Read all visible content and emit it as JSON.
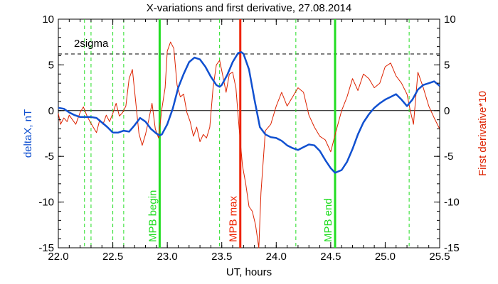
{
  "chart_data": {
    "type": "line",
    "title": "X-variations and first derivative, 27.08.2014",
    "xlabel": "UT, hours",
    "ylabel_left": "deltaX, nT",
    "ylabel_right": "First derivative*10",
    "xlim": [
      22.0,
      25.5
    ],
    "ylim": [
      -15,
      10
    ],
    "grid": false,
    "x_ticks": [
      22.0,
      22.5,
      23.0,
      23.5,
      24.0,
      24.5,
      25.0,
      25.5
    ],
    "x_tick_labels": [
      "22.0",
      "22.5",
      "23.0",
      "23.5",
      "24.0",
      "24.5",
      "25.0",
      "25.5"
    ],
    "y_ticks": [
      10,
      5,
      0,
      -5,
      -10,
      -15
    ],
    "y_tick_labels": [
      "10",
      "5",
      "0",
      "-5",
      "-10",
      "-15"
    ],
    "zero_line": 0,
    "sigma_level": 6.2,
    "sigma_label": "2sigma",
    "dashed_verticals": [
      22.24,
      22.3,
      22.5,
      22.6,
      23.48,
      24.18,
      25.22
    ],
    "markers": [
      {
        "label": "MPB begin",
        "x": 22.93,
        "color": "#22dd22"
      },
      {
        "label": "MPB max",
        "x": 23.67,
        "color": "#ee2200"
      },
      {
        "label": "MPB end",
        "x": 24.54,
        "color": "#22dd22"
      }
    ],
    "series": [
      {
        "name": "deltaX",
        "color": "#1050d0",
        "x": [
          22.0,
          22.05,
          22.1,
          22.15,
          22.2,
          22.25,
          22.3,
          22.35,
          22.4,
          22.45,
          22.5,
          22.55,
          22.6,
          22.65,
          22.7,
          22.75,
          22.8,
          22.85,
          22.9,
          22.93,
          22.95,
          23.0,
          23.05,
          23.1,
          23.15,
          23.2,
          23.25,
          23.3,
          23.35,
          23.4,
          23.45,
          23.48,
          23.5,
          23.55,
          23.6,
          23.65,
          23.68,
          23.7,
          23.75,
          23.8,
          23.85,
          23.9,
          23.95,
          24.0,
          24.05,
          24.1,
          24.15,
          24.2,
          24.25,
          24.3,
          24.35,
          24.4,
          24.45,
          24.5,
          24.54,
          24.6,
          24.65,
          24.7,
          24.75,
          24.8,
          24.85,
          24.9,
          24.95,
          25.0,
          25.05,
          25.1,
          25.15,
          25.2,
          25.25,
          25.3,
          25.35,
          25.4,
          25.45,
          25.5
        ],
        "values": [
          0.3,
          0.2,
          -0.2,
          -0.5,
          -0.7,
          -0.7,
          -0.7,
          -0.8,
          -1.3,
          -1.8,
          -2.4,
          -2.4,
          -2.2,
          -2.3,
          -1.6,
          -0.8,
          -1.2,
          -2.0,
          -2.5,
          -2.7,
          -2.6,
          -1.5,
          0.2,
          2.5,
          4.0,
          5.3,
          5.8,
          5.6,
          4.8,
          3.7,
          2.8,
          2.6,
          2.8,
          3.9,
          5.3,
          6.3,
          6.4,
          6.2,
          4.5,
          1.2,
          -1.8,
          -2.6,
          -2.9,
          -3.0,
          -3.3,
          -3.8,
          -4.1,
          -4.3,
          -4.0,
          -3.7,
          -3.8,
          -4.4,
          -5.4,
          -6.3,
          -6.8,
          -6.5,
          -5.6,
          -4.2,
          -2.6,
          -1.3,
          -0.4,
          0.3,
          0.8,
          1.2,
          1.5,
          1.8,
          1.2,
          0.5,
          1.2,
          2.3,
          2.8,
          3.0,
          3.2,
          2.7
        ]
      },
      {
        "name": "First derivative*10",
        "color": "#dd2200",
        "x": [
          22.0,
          22.02,
          22.05,
          22.08,
          22.1,
          22.13,
          22.16,
          22.2,
          22.23,
          22.26,
          22.29,
          22.32,
          22.35,
          22.38,
          22.41,
          22.44,
          22.47,
          22.5,
          22.53,
          22.56,
          22.59,
          22.62,
          22.65,
          22.68,
          22.71,
          22.74,
          22.77,
          22.8,
          22.83,
          22.86,
          22.89,
          22.92,
          22.95,
          22.98,
          23.0,
          23.03,
          23.06,
          23.09,
          23.12,
          23.15,
          23.18,
          23.21,
          23.24,
          23.27,
          23.3,
          23.33,
          23.36,
          23.39,
          23.42,
          23.45,
          23.48,
          23.51,
          23.54,
          23.57,
          23.6,
          23.63,
          23.66,
          23.69,
          23.72,
          23.75,
          23.78,
          23.81,
          23.84,
          23.86,
          23.9,
          23.95,
          24.0,
          24.05,
          24.1,
          24.15,
          24.2,
          24.25,
          24.3,
          24.35,
          24.4,
          24.45,
          24.5,
          24.55,
          24.6,
          24.65,
          24.7,
          24.75,
          24.8,
          24.85,
          24.9,
          24.95,
          25.0,
          25.05,
          25.1,
          25.15,
          25.2,
          25.23,
          25.26,
          25.3,
          25.35,
          25.4,
          25.45,
          25.5
        ],
        "values": [
          -0.3,
          -1.5,
          -0.8,
          -1.2,
          -0.5,
          -1.0,
          -1.5,
          -0.2,
          0.4,
          -0.5,
          -1.2,
          -1.8,
          -2.4,
          -1.0,
          -1.5,
          -0.5,
          -1.2,
          -0.3,
          0.8,
          -0.6,
          -0.2,
          0.5,
          3.5,
          4.5,
          1.0,
          -2.5,
          -3.8,
          -2.6,
          -1.0,
          0.8,
          -2.0,
          -3.0,
          0.2,
          2.5,
          6.5,
          7.5,
          6.8,
          2.8,
          1.5,
          1.8,
          -0.2,
          -1.2,
          -2.8,
          -1.8,
          -3.4,
          -2.6,
          -3.0,
          -1.8,
          2.5,
          5.0,
          5.5,
          3.8,
          2.0,
          4.0,
          4.2,
          2.5,
          -2.0,
          -6.0,
          -8.0,
          -10.5,
          -11.0,
          -12.5,
          -15.0,
          -9.0,
          -2.2,
          -1.5,
          0.5,
          2.0,
          0.5,
          1.5,
          2.5,
          2.0,
          -0.5,
          -1.8,
          -2.8,
          -3.2,
          -4.5,
          -2.2,
          0.0,
          1.5,
          3.5,
          2.2,
          4.0,
          3.5,
          2.5,
          3.0,
          4.8,
          5.2,
          3.8,
          3.0,
          1.8,
          0.0,
          -1.5,
          4.2,
          2.5,
          0.5,
          -0.8,
          -2.0
        ]
      }
    ]
  }
}
